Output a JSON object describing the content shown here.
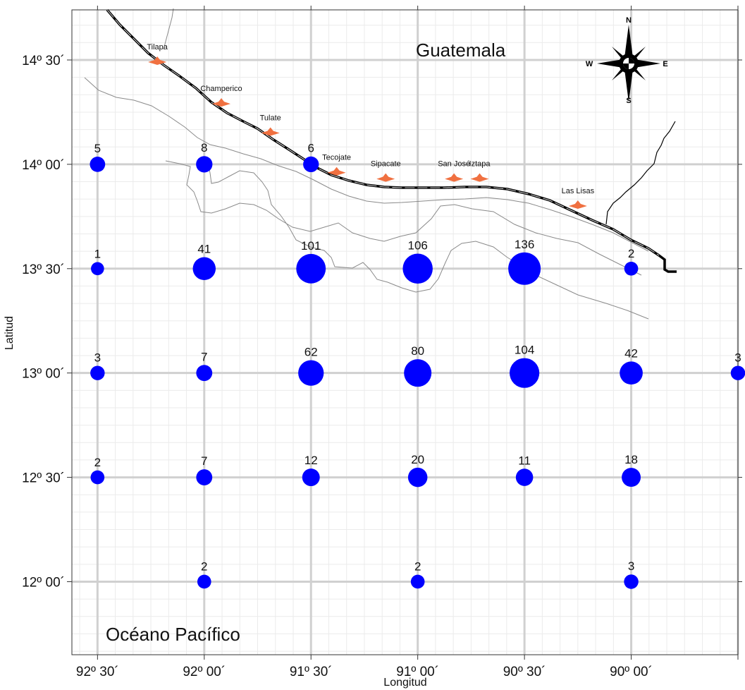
{
  "map": {
    "x_axis_title": "Longitud",
    "y_axis_title": "Latitud",
    "x_ticks": [
      {
        "value": -92.5,
        "label": "92º 30´"
      },
      {
        "value": -92.0,
        "label": "92º 00´"
      },
      {
        "value": -91.5,
        "label": "91º 30´"
      },
      {
        "value": -91.0,
        "label": "91º 00´"
      },
      {
        "value": -90.5,
        "label": "90º 30´"
      },
      {
        "value": -90.0,
        "label": "90º 00´"
      }
    ],
    "y_ticks": [
      {
        "value": 14.5,
        "label": "14º 30´"
      },
      {
        "value": 14.0,
        "label": "14º 00´"
      },
      {
        "value": 13.5,
        "label": "13º 30´"
      },
      {
        "value": 13.0,
        "label": "13º 00´"
      },
      {
        "value": 12.5,
        "label": "12º 30´"
      },
      {
        "value": 12.0,
        "label": "12º 00´"
      }
    ],
    "regions": {
      "land": "Guatemala",
      "sea": "Océano Pacífico"
    },
    "compass": {
      "n": "N",
      "s": "S",
      "e": "E",
      "w": "W"
    },
    "colors": {
      "circle": "#0000ff",
      "port": "#f07040",
      "coast": "#000000",
      "contour": "#8a8a8a",
      "major_grid": "#d0d0d0",
      "minor_grid": "#ebebeb"
    },
    "ports": [
      {
        "name": "Tilapa",
        "lon": -92.22,
        "lat": 14.49
      },
      {
        "name": "Champerico",
        "lon": -91.92,
        "lat": 14.29
      },
      {
        "name": "Tulate",
        "lon": -91.69,
        "lat": 14.15
      },
      {
        "name": "Tecojate",
        "lon": -91.38,
        "lat": 13.96
      },
      {
        "name": "Sipacate",
        "lon": -91.15,
        "lat": 13.93
      },
      {
        "name": "San José",
        "lon": -90.83,
        "lat": 13.93
      },
      {
        "name": "Iztapa",
        "lon": -90.71,
        "lat": 13.93
      },
      {
        "name": "Las Lisas",
        "lon": -90.25,
        "lat": 13.8
      }
    ]
  },
  "chart_data": {
    "type": "scatter",
    "x_range": [
      -92.62,
      -89.5
    ],
    "y_range": [
      11.65,
      14.74
    ],
    "grid": true,
    "points": [
      {
        "lon": -92.5,
        "lat": 14.0,
        "count": 5,
        "label": "5"
      },
      {
        "lon": -92.0,
        "lat": 14.0,
        "count": 8,
        "label": "8"
      },
      {
        "lon": -91.5,
        "lat": 14.0,
        "count": 6,
        "label": "6"
      },
      {
        "lon": -92.5,
        "lat": 13.5,
        "count": 1,
        "label": "1"
      },
      {
        "lon": -92.0,
        "lat": 13.5,
        "count": 41,
        "label": "41"
      },
      {
        "lon": -91.5,
        "lat": 13.5,
        "count": 101,
        "label": "101"
      },
      {
        "lon": -91.0,
        "lat": 13.5,
        "count": 106,
        "label": "106"
      },
      {
        "lon": -90.5,
        "lat": 13.5,
        "count": 136,
        "label": "136"
      },
      {
        "lon": -90.0,
        "lat": 13.5,
        "count": 2,
        "label": "2"
      },
      {
        "lon": -92.5,
        "lat": 13.0,
        "count": 3,
        "label": "3"
      },
      {
        "lon": -92.0,
        "lat": 13.0,
        "count": 7,
        "label": "7"
      },
      {
        "lon": -91.5,
        "lat": 13.0,
        "count": 62,
        "label": "62"
      },
      {
        "lon": -91.0,
        "lat": 13.0,
        "count": 80,
        "label": "80"
      },
      {
        "lon": -90.5,
        "lat": 13.0,
        "count": 104,
        "label": "104"
      },
      {
        "lon": -90.0,
        "lat": 13.0,
        "count": 42,
        "label": "42"
      },
      {
        "lon": -89.5,
        "lat": 13.0,
        "count": 3,
        "label": "3"
      },
      {
        "lon": -92.5,
        "lat": 12.5,
        "count": 2,
        "label": "2"
      },
      {
        "lon": -92.0,
        "lat": 12.5,
        "count": 7,
        "label": "7"
      },
      {
        "lon": -91.5,
        "lat": 12.5,
        "count": 12,
        "label": "12"
      },
      {
        "lon": -91.0,
        "lat": 12.5,
        "count": 20,
        "label": "20"
      },
      {
        "lon": -90.5,
        "lat": 12.5,
        "count": 11,
        "label": "11"
      },
      {
        "lon": -90.0,
        "lat": 12.5,
        "count": 18,
        "label": "18"
      },
      {
        "lon": -92.0,
        "lat": 12.0,
        "count": 2,
        "label": "2"
      },
      {
        "lon": -91.0,
        "lat": 12.0,
        "count": 2,
        "label": "2"
      },
      {
        "lon": -90.0,
        "lat": 12.0,
        "count": 3,
        "label": "3"
      }
    ]
  }
}
